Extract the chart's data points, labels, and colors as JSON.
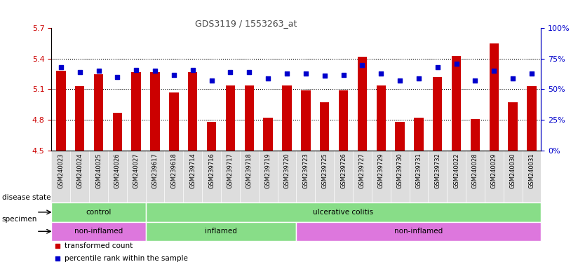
{
  "title": "GDS3119 / 1553263_at",
  "samples": [
    "GSM240023",
    "GSM240024",
    "GSM240025",
    "GSM240026",
    "GSM240027",
    "GSM239617",
    "GSM239618",
    "GSM239714",
    "GSM239716",
    "GSM239717",
    "GSM239718",
    "GSM239719",
    "GSM239720",
    "GSM239723",
    "GSM239725",
    "GSM239726",
    "GSM239727",
    "GSM239729",
    "GSM239730",
    "GSM239731",
    "GSM239732",
    "GSM240022",
    "GSM240028",
    "GSM240029",
    "GSM240030",
    "GSM240031"
  ],
  "bar_values": [
    5.28,
    5.13,
    5.25,
    4.87,
    5.27,
    5.27,
    5.07,
    5.27,
    4.78,
    5.14,
    5.14,
    4.82,
    5.14,
    5.09,
    4.97,
    5.09,
    5.42,
    5.14,
    4.78,
    4.82,
    5.22,
    5.43,
    4.81,
    5.55,
    4.97,
    5.13
  ],
  "blue_values": [
    68,
    64,
    65,
    60,
    66,
    65,
    62,
    66,
    57,
    64,
    64,
    59,
    63,
    63,
    61,
    62,
    70,
    63,
    57,
    59,
    68,
    71,
    57,
    65,
    59,
    63
  ],
  "ylim_left": [
    4.5,
    5.7
  ],
  "ylim_right": [
    0,
    100
  ],
  "yticks_left": [
    4.5,
    4.8,
    5.1,
    5.4,
    5.7
  ],
  "yticks_right": [
    0,
    25,
    50,
    75,
    100
  ],
  "bar_color": "#cc0000",
  "dot_color": "#0000cc",
  "title_color": "#444444",
  "left_axis_color": "#cc0000",
  "right_axis_color": "#0000cc",
  "base_value": 4.5,
  "bar_width": 0.5,
  "disease_groups": [
    {
      "label": "control",
      "start": 0,
      "end": 4,
      "color": "#88dd88"
    },
    {
      "label": "ulcerative colitis",
      "start": 5,
      "end": 25,
      "color": "#88dd88"
    }
  ],
  "specimen_groups": [
    {
      "label": "non-inflamed",
      "start": 0,
      "end": 4,
      "color": "#dd77dd"
    },
    {
      "label": "inflamed",
      "start": 5,
      "end": 12,
      "color": "#88dd88"
    },
    {
      "label": "non-inflamed",
      "start": 13,
      "end": 25,
      "color": "#dd77dd"
    }
  ],
  "legend_items": [
    {
      "label": "transformed count",
      "color": "#cc0000"
    },
    {
      "label": "percentile rank within the sample",
      "color": "#0000cc"
    }
  ],
  "xtick_bg_color": "#dddddd",
  "left_label": "disease state",
  "specimen_label": "specimen"
}
